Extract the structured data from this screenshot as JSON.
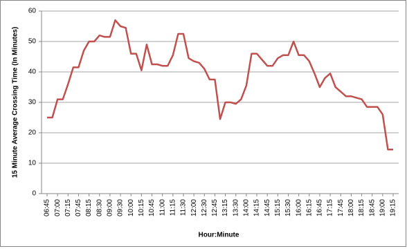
{
  "chart_data": {
    "type": "line",
    "x_label": "Hour:Minute",
    "y_label": "15 Minute Average Crossing Time (In Minutes)",
    "categories": [
      "06:45",
      null,
      "07:00",
      null,
      "07:15",
      null,
      "07:45",
      null,
      "08:15",
      null,
      "08:30",
      null,
      "09:00",
      null,
      "09:30",
      null,
      "10:00",
      null,
      "10:15",
      null,
      "10:45",
      null,
      "11:00",
      null,
      "11:15",
      null,
      "11:30",
      null,
      "12:00",
      null,
      "12:30",
      null,
      "12:45",
      null,
      "13:15",
      null,
      "13:30",
      null,
      "14:00",
      null,
      "14:15",
      null,
      "14:45",
      null,
      "15:15",
      null,
      "15:30",
      null,
      "16:00",
      null,
      "16:15",
      null,
      "16:45",
      null,
      "17:15",
      null,
      "17:45",
      null,
      "18:00",
      null,
      "18:15",
      null,
      "18:45",
      null,
      "19:00",
      null,
      "19:15"
    ],
    "series": [
      {
        "color": "#c0504d",
        "values": [
          25,
          25,
          31,
          31,
          36,
          41.5,
          41.5,
          47,
          50,
          50,
          52,
          51.5,
          51.5,
          57,
          55,
          54.5,
          46,
          46,
          40.5,
          49,
          42.5,
          42.5,
          42,
          42,
          45.5,
          52.5,
          52.5,
          44.5,
          43.5,
          43,
          41,
          37.5,
          37.5,
          24.5,
          30,
          30,
          29.5,
          31,
          35.5,
          46,
          46,
          44,
          42,
          42,
          44.5,
          45.5,
          45.5,
          50,
          45.5,
          45.5,
          43.5,
          39.5,
          35,
          38,
          39.5,
          35,
          33.5,
          32,
          32,
          31.5,
          31,
          28.5,
          28.5,
          28.5,
          26,
          14.5,
          14.5
        ]
      }
    ],
    "ylim": [
      0,
      60
    ],
    "yticks": [
      0,
      10,
      20,
      30,
      40,
      50,
      60
    ],
    "grid": true
  }
}
